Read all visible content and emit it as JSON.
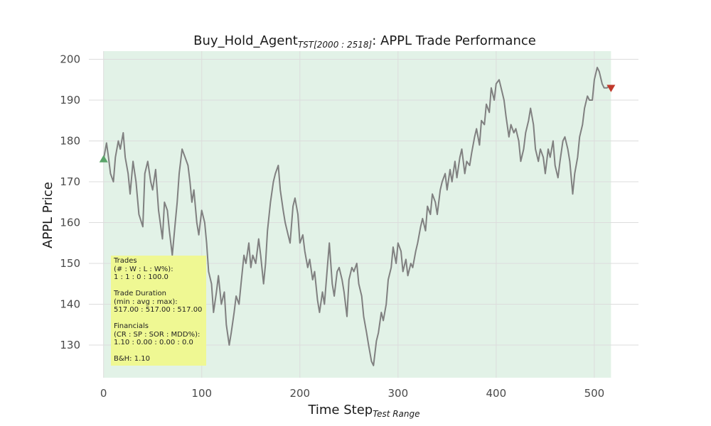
{
  "chart_data": {
    "type": "line",
    "title_main": "Buy_Hold_Agent",
    "title_sub": "TST[2000 : 2518]",
    "title_tail": ": APPL Trade Performance",
    "xlabel_main": "Time Step",
    "xlabel_sub": "Test Range",
    "ylabel": "APPL Price",
    "xlim": [
      -15,
      545
    ],
    "ylim": [
      122,
      202
    ],
    "xticks": [
      0,
      100,
      200,
      300,
      400,
      500
    ],
    "yticks": [
      130,
      140,
      150,
      160,
      170,
      180,
      190,
      200
    ],
    "grid": true,
    "colors": {
      "line": "#808080",
      "span": "#d6ecdd",
      "buy": "#5aa469",
      "sell": "#c0392b",
      "box": "#f0f88c"
    },
    "trade_span": [
      0,
      517
    ],
    "series": [
      {
        "x": [
          0,
          3,
          5,
          7,
          10,
          12,
          15,
          17,
          20,
          22,
          25,
          27,
          30,
          33,
          36,
          40,
          42,
          45,
          48,
          50,
          53,
          56,
          60,
          62,
          65,
          67,
          70,
          73,
          75,
          77,
          80,
          83,
          86,
          88,
          90,
          92,
          95,
          97,
          100,
          103,
          105,
          107,
          110,
          112,
          115,
          117,
          120,
          123,
          125,
          128,
          130,
          133,
          135,
          138,
          140,
          143,
          145,
          148,
          150,
          152,
          155,
          158,
          160,
          163,
          165,
          167,
          170,
          173,
          175,
          178,
          180,
          183,
          185,
          188,
          190,
          193,
          195,
          198,
          200,
          203,
          205,
          208,
          210,
          213,
          215,
          218,
          220,
          223,
          225,
          228,
          230,
          233,
          235,
          238,
          240,
          243,
          245,
          248,
          250,
          253,
          255,
          258,
          260,
          263,
          265,
          268,
          270,
          273,
          275,
          278,
          280,
          283,
          285,
          288,
          290,
          293,
          295,
          298,
          300,
          303,
          305,
          308,
          310,
          313,
          315,
          318,
          320,
          323,
          325,
          328,
          330,
          333,
          335,
          338,
          340,
          343,
          345,
          348,
          350,
          353,
          355,
          358,
          360,
          363,
          365,
          368,
          370,
          373,
          375,
          378,
          380,
          383,
          385,
          388,
          390,
          393,
          395,
          398,
          400,
          403,
          405,
          408,
          410,
          413,
          415,
          418,
          420,
          423,
          425,
          428,
          430,
          433,
          435,
          438,
          440,
          443,
          445,
          448,
          450,
          453,
          455,
          458,
          460,
          463,
          465,
          468,
          470,
          473,
          475,
          478,
          480,
          483,
          485,
          488,
          490,
          493,
          495,
          498,
          500,
          503,
          505,
          508,
          510,
          513,
          515,
          517
        ],
        "y": [
          175.5,
          179.5,
          176,
          172,
          170,
          176,
          180,
          178,
          182,
          176,
          172,
          167,
          175,
          170,
          162,
          159,
          172,
          175,
          170,
          168,
          173,
          163,
          156,
          165,
          163,
          158,
          152,
          160,
          165,
          172,
          178,
          176,
          174,
          170,
          165,
          168,
          160,
          157,
          163,
          160,
          155,
          148,
          145,
          138,
          143,
          147,
          140,
          143,
          135,
          130,
          133,
          138,
          142,
          140,
          145,
          152,
          150,
          155,
          149,
          152,
          150,
          156,
          152,
          145,
          150,
          158,
          165,
          170,
          172,
          174,
          168,
          163,
          160,
          157,
          155,
          164,
          166,
          162,
          155,
          157,
          153,
          149,
          151,
          146,
          148,
          141,
          138,
          143,
          140,
          149,
          155,
          145,
          142,
          148,
          149,
          146,
          143,
          137,
          146,
          149,
          148,
          150,
          145,
          142,
          137,
          133,
          130,
          126,
          125,
          131,
          133,
          138,
          136,
          140,
          146,
          149,
          154,
          150,
          155,
          153,
          148,
          151,
          147,
          150,
          149,
          153,
          155,
          159,
          161,
          158,
          164,
          162,
          167,
          165,
          162,
          168,
          170,
          172,
          168,
          173,
          170,
          175,
          171,
          176,
          178,
          172,
          175,
          174,
          177,
          181,
          183,
          179,
          185,
          184,
          189,
          187,
          193,
          190,
          194,
          195,
          193,
          190,
          186,
          181,
          184,
          182,
          183,
          180,
          175,
          178,
          182,
          185,
          188,
          184,
          178,
          175,
          178,
          176,
          172,
          178,
          176,
          180,
          174,
          171,
          175,
          180,
          181,
          178,
          175,
          167,
          172,
          176,
          181,
          184,
          188,
          191,
          190,
          190,
          195,
          198,
          197,
          194,
          193,
          193,
          193.5,
          193
        ]
      }
    ],
    "markers": [
      {
        "type": "buy",
        "x": 0,
        "y": 175.5
      },
      {
        "type": "sell",
        "x": 517,
        "y": 193
      }
    ],
    "stats_box": [
      "Trades",
      "(# : W : L : W%):",
      "1 : 1 : 0 : 100.0",
      "",
      "Trade Duration",
      "(min : avg : max):",
      "517.00 : 517.00 : 517.00",
      "",
      "Financials",
      "(CR : SP : SOR : MDD%):",
      "1.10 : 0.00 : 0.00 : 0.0",
      "",
      "B&H: 1.10"
    ]
  }
}
